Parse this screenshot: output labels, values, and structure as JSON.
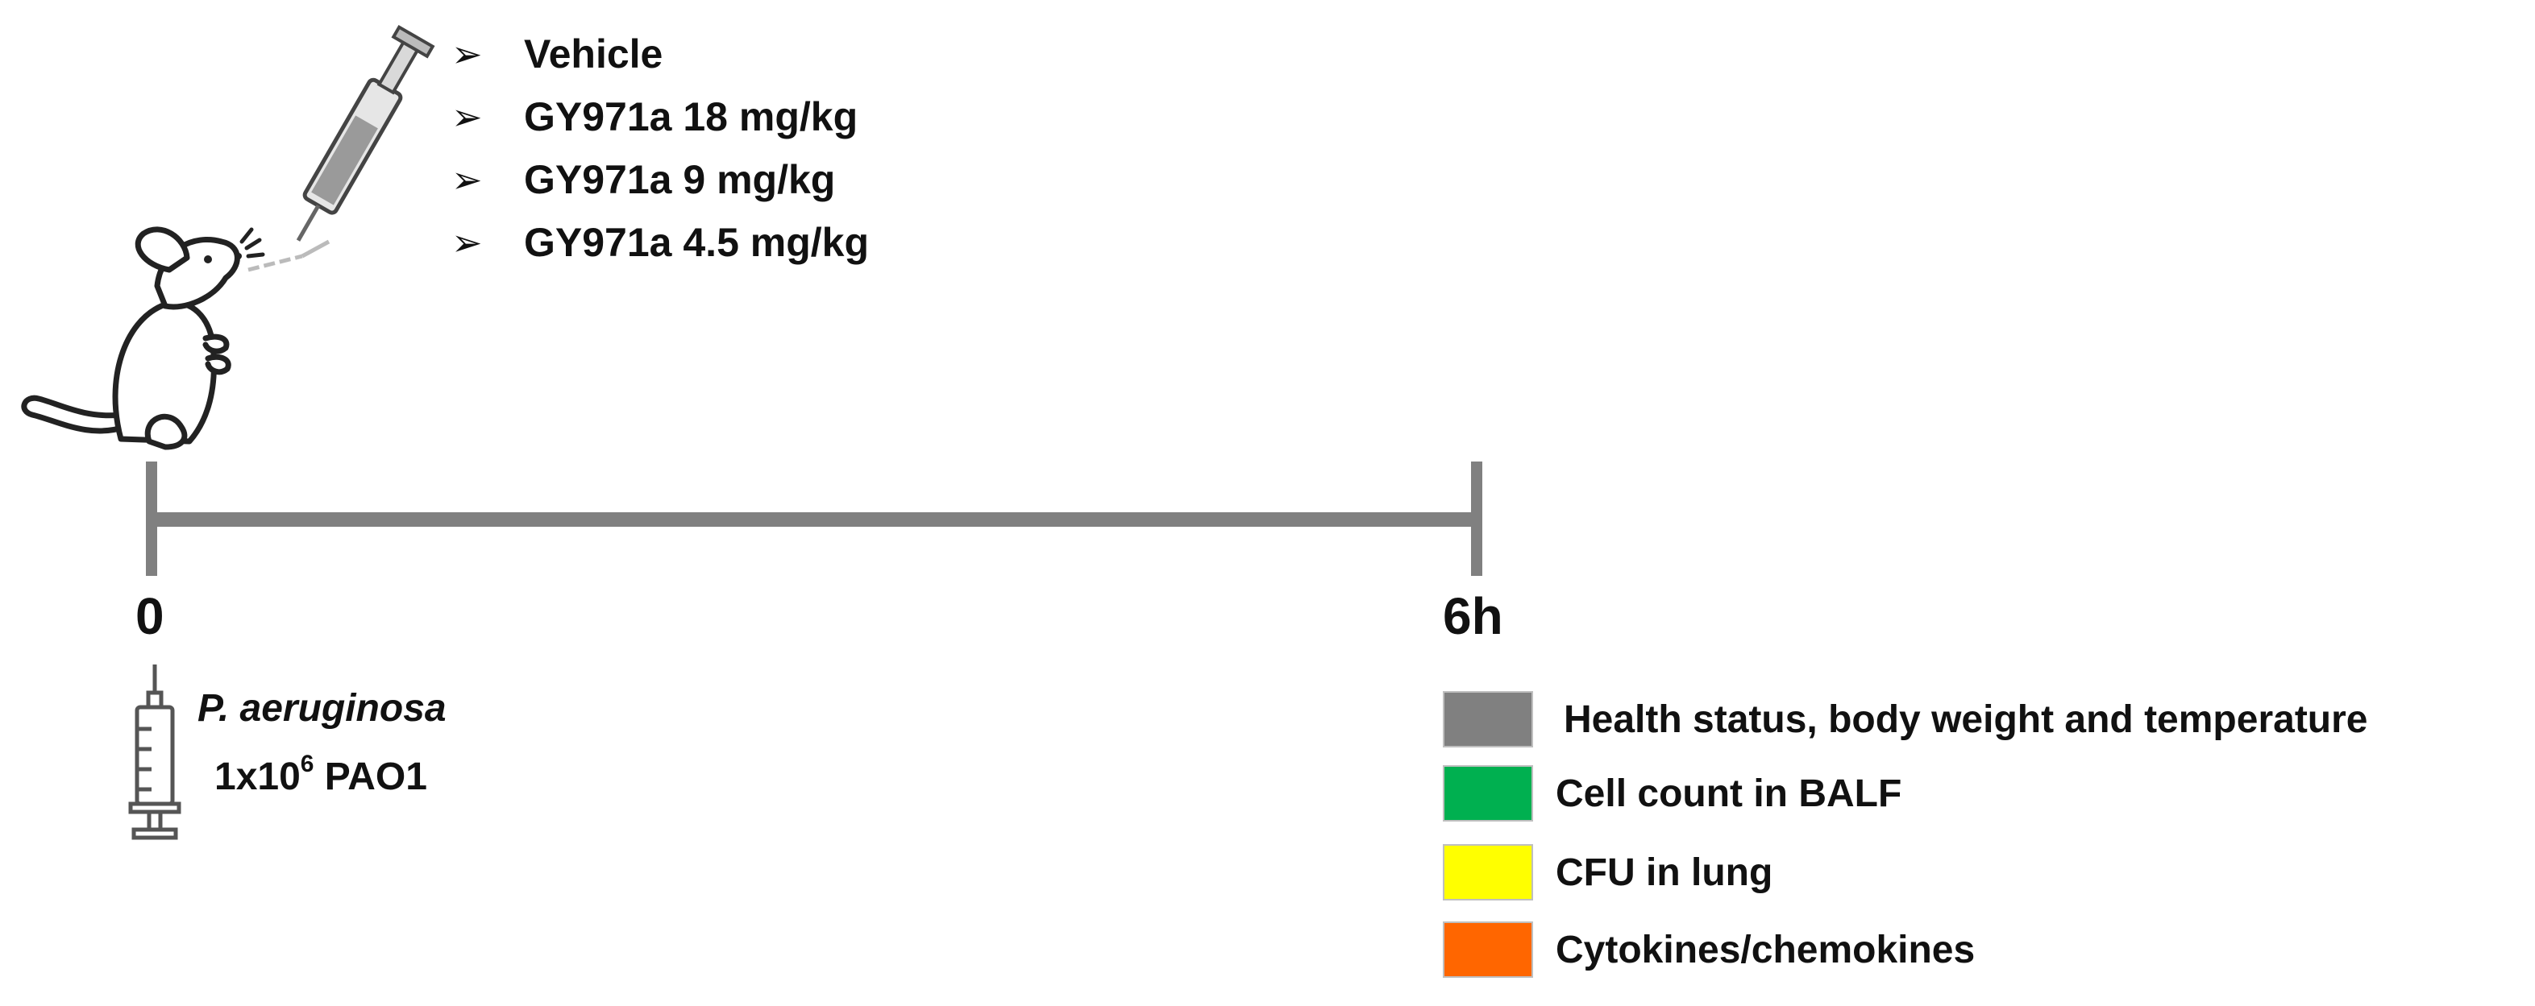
{
  "treatments": {
    "arrow_icon": "arrow-right-outline-icon",
    "items": [
      {
        "label": "Vehicle"
      },
      {
        "label": "GY971a 18 mg/kg"
      },
      {
        "label": "GY971a 9 mg/kg"
      },
      {
        "label": "GY971a 4.5 mg/kg"
      }
    ]
  },
  "timeline": {
    "start_label": "0",
    "end_label": "6h",
    "color": "#808080"
  },
  "infection": {
    "organism": "P. aeruginosa",
    "dose_prefix": "1x10",
    "dose_exponent": "6",
    "dose_suffix": " PAO1"
  },
  "legend": {
    "items": [
      {
        "label": "Health status, body weight and temperature",
        "color": "#808080"
      },
      {
        "label": "Cell count in BALF",
        "color": "#00b050"
      },
      {
        "label": "CFU in lung",
        "color": "#ffff00"
      },
      {
        "label": "Cytokines/chemokines",
        "color": "#ff6600"
      }
    ]
  }
}
